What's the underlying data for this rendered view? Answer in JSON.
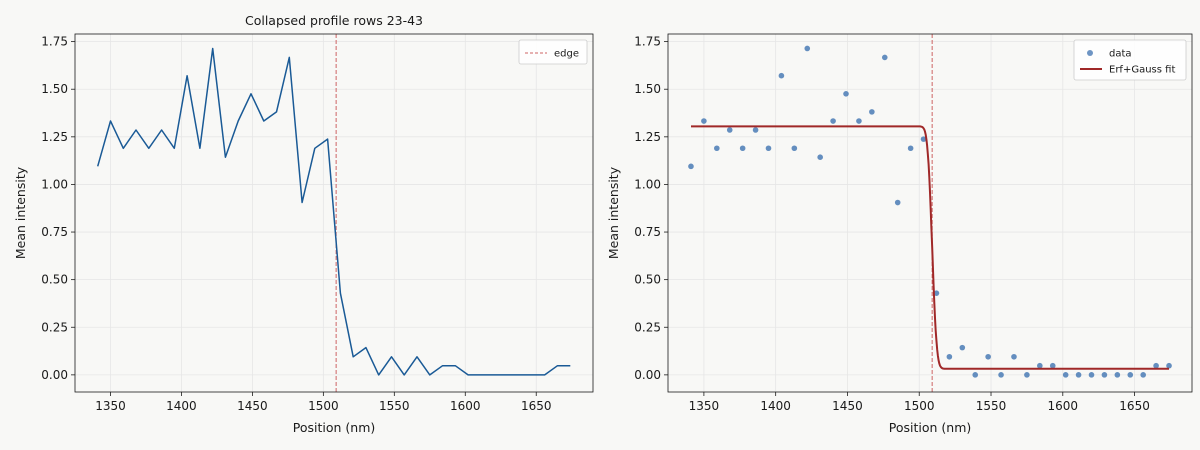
{
  "colors": {
    "background": "#f8f8f6",
    "line": "#1a5a96",
    "scatter": "#4a7bb5",
    "fit": "#a02828",
    "edge": "#cd6464",
    "grid": "#e6e6e6"
  },
  "chart_data": [
    {
      "type": "line",
      "title": "Collapsed profile  rows 23-43",
      "xlabel": "Position (nm)",
      "ylabel": "Mean intensity",
      "xlim": [
        1325,
        1690
      ],
      "ylim": [
        -0.09,
        1.79
      ],
      "xticks": [
        1350,
        1400,
        1450,
        1500,
        1550,
        1600,
        1650
      ],
      "yticks": [
        0.0,
        0.25,
        0.5,
        0.75,
        1.0,
        1.25,
        1.5,
        1.75
      ],
      "grid": true,
      "legend_position": "top-right",
      "edge": 1509,
      "series": [
        {
          "x": [
            1341,
            1350,
            1359,
            1368,
            1377,
            1386,
            1395,
            1404,
            1413,
            1422,
            1431,
            1440,
            1449,
            1458,
            1467,
            1476,
            1485,
            1494,
            1503,
            1512,
            1521,
            1530,
            1539,
            1548,
            1557,
            1566,
            1575,
            1584,
            1593,
            1602,
            1611,
            1620,
            1629,
            1638,
            1647,
            1656,
            1665,
            1674
          ],
          "values": [
            1.095,
            1.333,
            1.19,
            1.286,
            1.19,
            1.286,
            1.19,
            1.571,
            1.19,
            1.714,
            1.143,
            1.333,
            1.476,
            1.333,
            1.381,
            1.667,
            0.905,
            1.19,
            1.238,
            0.429,
            0.095,
            0.143,
            0.0,
            0.095,
            0.0,
            0.095,
            0.0,
            0.048,
            0.048,
            0.0,
            0.0,
            0.0,
            0.0,
            0.0,
            0.0,
            0.0,
            0.048,
            0.048
          ]
        }
      ],
      "legend": [
        "edge"
      ]
    },
    {
      "type": "scatter",
      "title": "",
      "xlabel": "Position (nm)",
      "ylabel": "Mean intensity",
      "xlim": [
        1325,
        1690
      ],
      "ylim": [
        -0.09,
        1.79
      ],
      "xticks": [
        1350,
        1400,
        1450,
        1500,
        1550,
        1600,
        1650
      ],
      "yticks": [
        0.0,
        0.25,
        0.5,
        0.75,
        1.0,
        1.25,
        1.5,
        1.75
      ],
      "grid": true,
      "legend_position": "top-right",
      "edge": 1509,
      "series": [
        {
          "name": "data",
          "x": [
            1341,
            1350,
            1359,
            1368,
            1377,
            1386,
            1395,
            1404,
            1413,
            1422,
            1431,
            1440,
            1449,
            1458,
            1467,
            1476,
            1485,
            1494,
            1503,
            1512,
            1521,
            1530,
            1539,
            1548,
            1557,
            1566,
            1575,
            1584,
            1593,
            1602,
            1611,
            1620,
            1629,
            1638,
            1647,
            1656,
            1665,
            1674
          ],
          "values": [
            1.095,
            1.333,
            1.19,
            1.286,
            1.19,
            1.286,
            1.19,
            1.571,
            1.19,
            1.714,
            1.143,
            1.333,
            1.476,
            1.333,
            1.381,
            1.667,
            0.905,
            1.19,
            1.238,
            0.429,
            0.095,
            0.143,
            0.0,
            0.095,
            0.0,
            0.095,
            0.0,
            0.048,
            0.048,
            0.0,
            0.0,
            0.0,
            0.0,
            0.0,
            0.0,
            0.0,
            0.048,
            0.048
          ]
        }
      ],
      "fit": {
        "name": "Erf+Gauss fit",
        "x_range": [
          1341,
          1674
        ],
        "top": 1.305,
        "bottom": 0.032,
        "center": 1509,
        "width": 3.5
      },
      "legend": [
        "data",
        "Erf+Gauss fit"
      ]
    }
  ]
}
